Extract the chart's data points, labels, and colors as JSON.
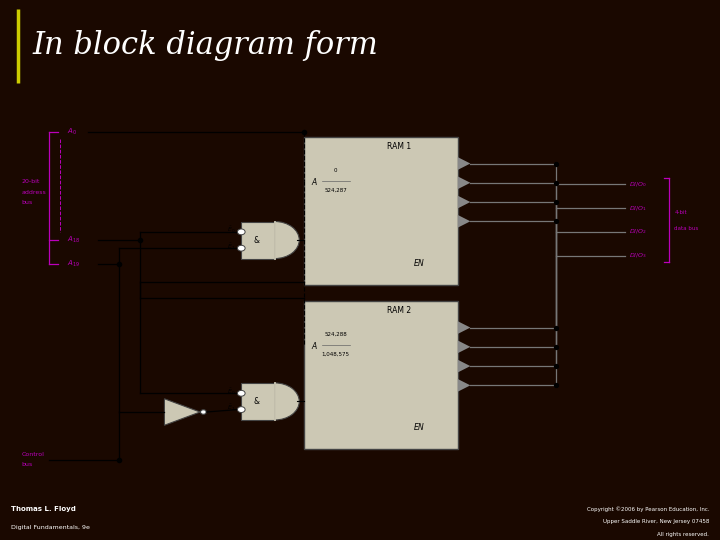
{
  "title": "In block diagram form",
  "title_color": "#ffffff",
  "title_bg_color": "#1a0800",
  "footer_left_line1": "Thomas L. Floyd",
  "footer_left_line2": "Digital Fundamentals, 9e",
  "footer_right_line1": "Copyright ©2006 by Pearson Education, Inc.",
  "footer_right_line2": "Upper Saddle River, New Jersey 07458",
  "footer_right_line3": "All rights reserved.",
  "ram_fill": "#ccc8b4",
  "line_color": "#000000",
  "label_color": "#bb00bb",
  "gate_fill": "#ccc8b4",
  "diagram_bg": "#f8f4ec",
  "title_fontsize": 22,
  "yellow_line": "#cccc00"
}
